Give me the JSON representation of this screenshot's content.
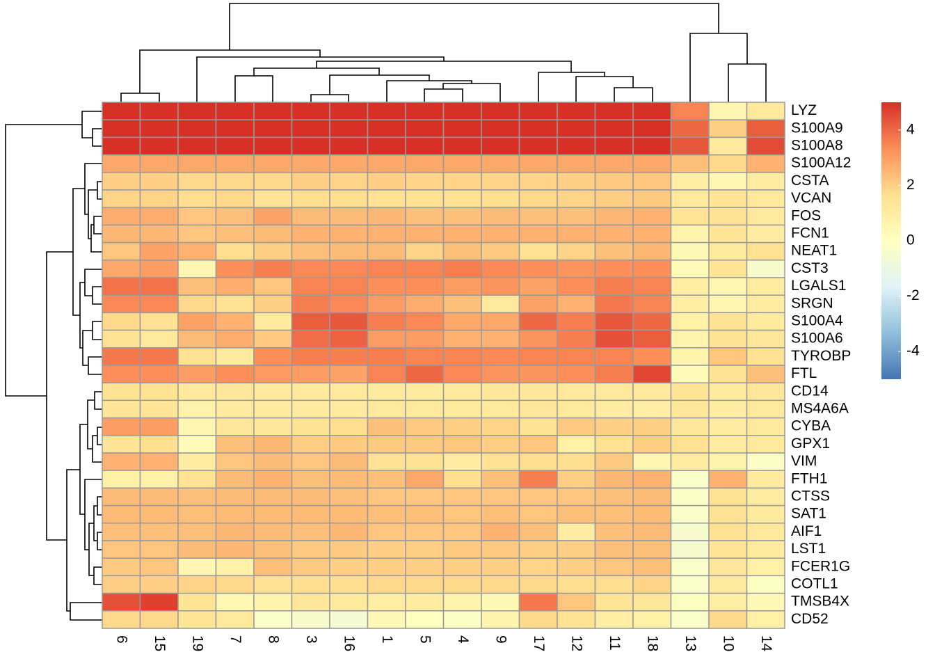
{
  "chart_data": {
    "type": "heatmap",
    "x": [
      "6",
      "15",
      "19",
      "7",
      "8",
      "3",
      "16",
      "1",
      "5",
      "4",
      "9",
      "17",
      "12",
      "11",
      "18",
      "13",
      "10",
      "14"
    ],
    "y": [
      "LYZ",
      "S100A9",
      "S100A8",
      "S100A12",
      "CSTA",
      "VCAN",
      "FOS",
      "FCN1",
      "NEAT1",
      "CST3",
      "LGALS1",
      "SRGN",
      "S100A4",
      "S100A6",
      "TYROBP",
      "FTL",
      "CD14",
      "MS4A6A",
      "CYBA",
      "GPX1",
      "VIM",
      "FTH1",
      "CTSS",
      "SAT1",
      "AIF1",
      "LST1",
      "FCER1G",
      "COTL1",
      "TMSB4X",
      "CD52"
    ],
    "values": [
      [
        5,
        5,
        5,
        5,
        5,
        5,
        5,
        5,
        5,
        5,
        5,
        5,
        5,
        5,
        5,
        3.5,
        0.5,
        1.2
      ],
      [
        5,
        5,
        5,
        5,
        5,
        5,
        5,
        5,
        5,
        5,
        5,
        5,
        5,
        5,
        5,
        4,
        2,
        4.2
      ],
      [
        5,
        5,
        5,
        5,
        5,
        5,
        5,
        5,
        5,
        5,
        5,
        5,
        5,
        5,
        5,
        4.3,
        1.2,
        4.5
      ],
      [
        2.8,
        2.8,
        2.8,
        2.8,
        2.8,
        2.8,
        2.8,
        2.8,
        2.8,
        2.8,
        2.8,
        2.8,
        2.8,
        2.8,
        2.8,
        2.3,
        1.8,
        2.6
      ],
      [
        2,
        2,
        1.8,
        1.8,
        1.8,
        2,
        1.9,
        2,
        1.9,
        1.9,
        1.9,
        1.9,
        2,
        2.1,
        2.2,
        0.9,
        0.4,
        1
      ],
      [
        1.9,
        1.9,
        1.7,
        1.8,
        1.4,
        1.7,
        1.7,
        1.6,
        1.6,
        1.6,
        1.7,
        1.8,
        1.9,
        2,
        2.1,
        1.2,
        1.4,
        1.2
      ],
      [
        2.7,
        2.7,
        2.2,
        2.3,
        2.9,
        2.4,
        2.4,
        2.5,
        2.3,
        2.3,
        2.4,
        2.3,
        2.3,
        2.5,
        2.6,
        1.4,
        1.5,
        1.2
      ],
      [
        2.5,
        2.5,
        2.2,
        2.3,
        2.4,
        2.6,
        2.6,
        2.6,
        2.6,
        2.6,
        2.6,
        2.6,
        2.6,
        2.6,
        2.6,
        0.6,
        1.4,
        1
      ],
      [
        2.2,
        2.9,
        2.6,
        1.7,
        2,
        2.3,
        2.4,
        2.4,
        1.9,
        2.3,
        2.1,
        1.6,
        1.9,
        2.3,
        2.5,
        0.3,
        1.2,
        1.6
      ],
      [
        2.8,
        3,
        0.5,
        3.3,
        3.6,
        3.4,
        3.4,
        3.5,
        3.5,
        3.6,
        3.4,
        3.3,
        3.2,
        3.3,
        3.3,
        0.2,
        1.4,
        -0.4
      ],
      [
        3.8,
        3.8,
        2.3,
        2.7,
        2.2,
        3.5,
        3.5,
        3.3,
        3.3,
        3,
        3.2,
        2.9,
        3.3,
        3.6,
        3.5,
        0.9,
        0.4,
        1
      ],
      [
        3.4,
        3.4,
        1.8,
        1.5,
        2,
        3.6,
        3.4,
        3,
        2.7,
        2.3,
        1.2,
        2.9,
        2.6,
        3.7,
        3.5,
        0.9,
        0.5,
        1
      ],
      [
        1.8,
        1.6,
        2.9,
        2.6,
        1.2,
        4.2,
        4.3,
        3.6,
        3.4,
        2.8,
        2.8,
        4,
        3.6,
        4.3,
        4,
        0.8,
        1.5,
        1.1
      ],
      [
        1.5,
        1.2,
        2.4,
        2.7,
        2.1,
        3.9,
        4.1,
        3,
        3,
        2.6,
        2.6,
        3.2,
        3.6,
        4.4,
        4.2,
        0.6,
        1.5,
        1.3
      ],
      [
        3.7,
        3.7,
        1.6,
        1.1,
        3.3,
        3.6,
        3.6,
        3.6,
        3.5,
        3.5,
        3.4,
        3.5,
        3.5,
        3.5,
        3.3,
        0.6,
        2.2,
        1.6
      ],
      [
        3.3,
        3.3,
        3,
        3.3,
        3.1,
        3,
        2.9,
        3.5,
        4,
        3.4,
        3.2,
        3.2,
        3.3,
        3.6,
        4.6,
        0.2,
        1.5,
        2.3
      ],
      [
        1.5,
        1.5,
        1.2,
        1.3,
        1.2,
        1.2,
        1.2,
        1.1,
        1.1,
        1.2,
        1.3,
        1.3,
        1.2,
        1.2,
        1.2,
        1.4,
        1.1,
        1.3
      ],
      [
        1.4,
        1.4,
        0.7,
        1.1,
        1.1,
        1.1,
        1.1,
        1.2,
        1.2,
        1.2,
        1.2,
        1.3,
        1.2,
        1,
        0.9,
        1.3,
        1,
        1.2
      ],
      [
        3,
        3,
        0.5,
        1.3,
        1.3,
        1.5,
        1.7,
        2.3,
        2.1,
        2,
        1.9,
        1.5,
        2.1,
        2,
        2,
        1.3,
        1,
        1.2
      ],
      [
        1.4,
        1.7,
        0.2,
        2.3,
        2.5,
        2,
        2.1,
        2.1,
        2.1,
        2.2,
        2,
        2.2,
        0.8,
        1.6,
        2,
        1.6,
        1,
        1.2
      ],
      [
        2.6,
        2.6,
        1,
        2.2,
        2.4,
        2.2,
        2.4,
        1.6,
        1.6,
        1,
        1.6,
        1.7,
        1.7,
        2.1,
        0.5,
        1,
        0.7,
        -0.2
      ],
      [
        0.8,
        0.8,
        1.5,
        2.4,
        2.6,
        2.3,
        2.4,
        2.3,
        2.8,
        1.7,
        2.3,
        3.6,
        2,
        2.5,
        2.6,
        -0.3,
        2.6,
        1.1
      ],
      [
        2.4,
        2.4,
        2.3,
        2.4,
        2.4,
        2.4,
        2.3,
        2.2,
        2.2,
        2.2,
        2.2,
        2.2,
        2.2,
        2.3,
        2.4,
        -0.2,
        1.5,
        1
      ],
      [
        2.4,
        2.4,
        2.3,
        2.4,
        2.4,
        2.4,
        2.4,
        2.3,
        2.3,
        2.2,
        2.3,
        2.2,
        2.3,
        2.3,
        2.4,
        -0.3,
        1.5,
        1.1
      ],
      [
        2.3,
        2.3,
        2.3,
        2.5,
        2.4,
        2.3,
        2.5,
        2.2,
        2.2,
        2.2,
        2.6,
        2.3,
        1,
        2.3,
        2.4,
        -0.5,
        1.6,
        1.2
      ],
      [
        2.2,
        2.2,
        2.4,
        2.5,
        2.3,
        2.1,
        2.1,
        2,
        2,
        2.1,
        2.1,
        2,
        2,
        2.3,
        2.3,
        -0.5,
        1.4,
        1.1
      ],
      [
        2.1,
        2.2,
        0.5,
        0.8,
        2.3,
        2.1,
        2,
        2,
        2,
        2,
        2,
        1.9,
        2,
        2.2,
        2.3,
        -0.3,
        1.3,
        0.8
      ],
      [
        2,
        2,
        1.9,
        1.8,
        1.6,
        1.7,
        1.7,
        1.8,
        1.8,
        1.8,
        1.8,
        1.8,
        1.7,
        1.7,
        1.9,
        -0.3,
        1.2,
        -0.1
      ],
      [
        4.4,
        4.7,
        1.4,
        0.4,
        0.6,
        1.3,
        1.2,
        0.9,
        1,
        0.6,
        0.3,
        3.7,
        2.2,
        1.4,
        1.3,
        -0.1,
        0.9,
        0.3
      ],
      [
        1.8,
        1.8,
        1.4,
        1.2,
        -0.3,
        -0.4,
        -0.6,
        0.3,
        0,
        -0.2,
        0.6,
        1.8,
        1.5,
        0.9,
        0.8,
        -0.3,
        1.8,
        0.8
      ]
    ],
    "colors": [
      "#4575B4",
      "#91BFDB",
      "#E0F3F8",
      "#FFFFBF",
      "#FEE090",
      "#FC8D59",
      "#D73027"
    ],
    "zlim": [
      -5,
      5
    ],
    "zticks": [
      -4,
      -2,
      0,
      2,
      4
    ],
    "cell_border": "#999999"
  }
}
